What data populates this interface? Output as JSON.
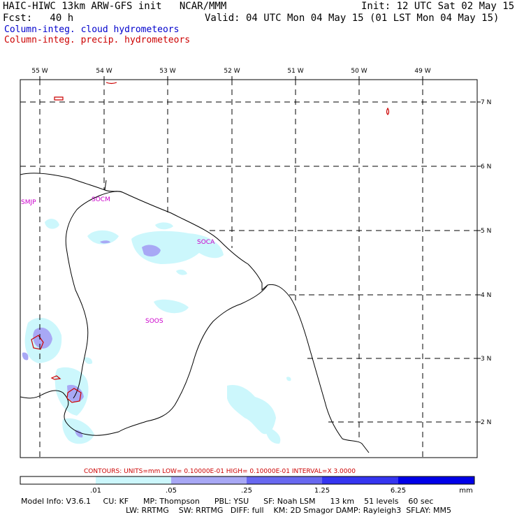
{
  "header": {
    "model_title": "HAIC-HIWC 13km ARW-GFS init   NCAR/MMM",
    "init": "Init: 12 UTC Sat 02 May 15",
    "forecast": "Fcst:   40 h",
    "valid": "Valid: 04 UTC Mon 04 May 15 (01 LST Mon 04 May 15)",
    "field_cloud": "Column-integ. cloud hydrometeors",
    "field_precip": "Column-integ. precip. hydrometeors"
  },
  "map": {
    "lon_labels": [
      "55 W",
      "54 W",
      "53 W",
      "52 W",
      "51 W",
      "50 W",
      "49 W"
    ],
    "lat_labels": [
      "7 N",
      "6 N",
      "5 N",
      "4 N",
      "3 N",
      "2 N"
    ],
    "stations": [
      "SMJP",
      "SOCM",
      "SOCA",
      "SOOS"
    ],
    "colors": {
      "cloud_light": "#ccf7fc",
      "cloud_mid": "#a8a8f5",
      "precip_contour": "#cc0000",
      "coastline": "#000000",
      "station_label": "#cc00cc"
    }
  },
  "contours_note": "CONTOURS:  UNITS=mm  LOW= 0.10000E-01  HIGH= 0.10000E-01  INTERVAL=X  3.0000",
  "colorbar": {
    "labels": [
      ".01",
      ".05",
      ".25",
      "1.25",
      "6.25"
    ],
    "units": "mm",
    "colors": [
      "#ffffff",
      "#ccf7fc",
      "#a8a8f5",
      "#6868f0",
      "#3535f0",
      "#0000e8"
    ]
  },
  "footer": {
    "line1": "Model Info: V3.6.1     CU: KF      MP: Thompson      PBL: YSU      SF: Noah LSM      13 km    51 levels    60 sec",
    "line2": "LW: RRTMG    SW: RRTMG   DIFF: full    KM: 2D Smagor DAMP: Rayleigh3  SFLAY: MM5"
  }
}
